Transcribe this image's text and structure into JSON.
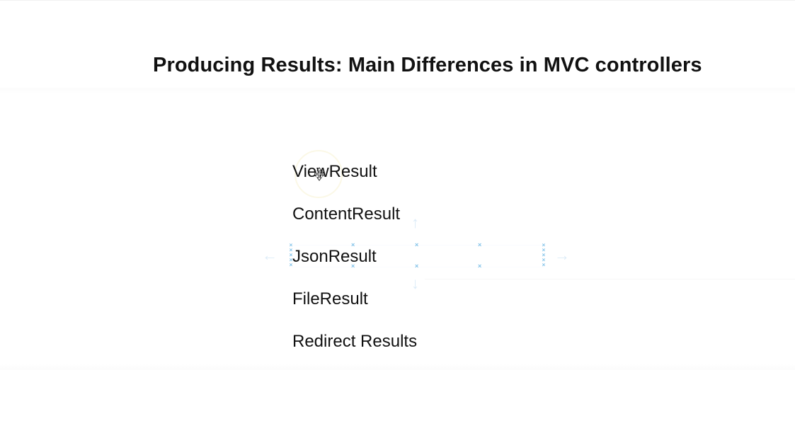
{
  "slide": {
    "title": "Producing Results: Main Differences in MVC controllers",
    "items": [
      "ViewResult",
      "ContentResult",
      "JsonResult",
      "FileResult",
      "Redirect Results"
    ]
  },
  "icons": {
    "cursor": "move-cursor-icon",
    "handles": "resize-handle-icon",
    "arrows": "move-arrow-icon"
  },
  "colors": {
    "handle": "#7fc1e8",
    "arrow": "#dcecf8",
    "text": "#111111",
    "background": "#ffffff"
  }
}
